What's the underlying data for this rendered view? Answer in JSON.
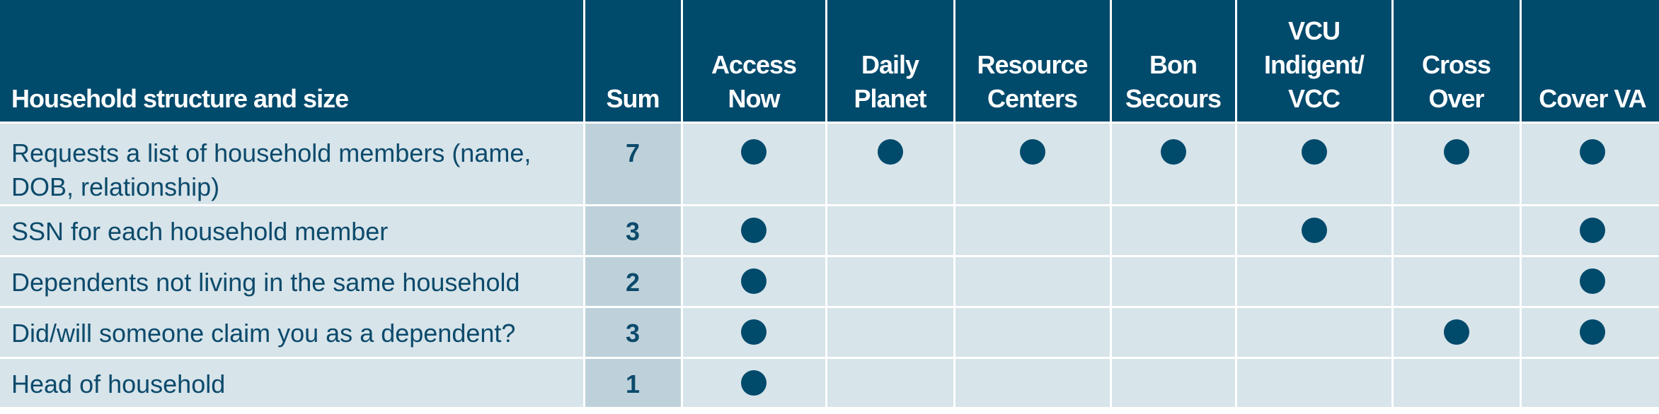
{
  "table": {
    "label_header": "Household structure and size",
    "sum_header": "Sum",
    "organizations": [
      "Access\nNow",
      "Daily\nPlanet",
      "Resource\nCenters",
      "Bon\nSecours",
      "VCU\nIndigent/\nVCC",
      "Cross\nOver",
      "Cover VA"
    ],
    "rows": [
      {
        "label": "Requests a list of household members (name, DOB, relationship)",
        "sum": "7",
        "marks": [
          true,
          true,
          true,
          true,
          true,
          true,
          true
        ]
      },
      {
        "label": "SSN for each household member",
        "sum": "3",
        "marks": [
          true,
          false,
          false,
          false,
          true,
          false,
          true
        ]
      },
      {
        "label": "Dependents not living in the same household",
        "sum": "2",
        "marks": [
          true,
          false,
          false,
          false,
          false,
          false,
          true
        ]
      },
      {
        "label": "Did/will someone claim you as a dependent?",
        "sum": "3",
        "marks": [
          true,
          false,
          false,
          false,
          false,
          true,
          true
        ]
      },
      {
        "label": "Head of household",
        "sum": "1",
        "marks": [
          true,
          false,
          false,
          false,
          false,
          false,
          false
        ]
      }
    ],
    "colors": {
      "header_bg": "#004a6c",
      "cell_bg": "#d7e4ea",
      "sum_bg": "#bed1da",
      "text": "#0c4a6b",
      "dot": "#004a6c"
    },
    "mark_icon": "filled-circle-icon"
  }
}
